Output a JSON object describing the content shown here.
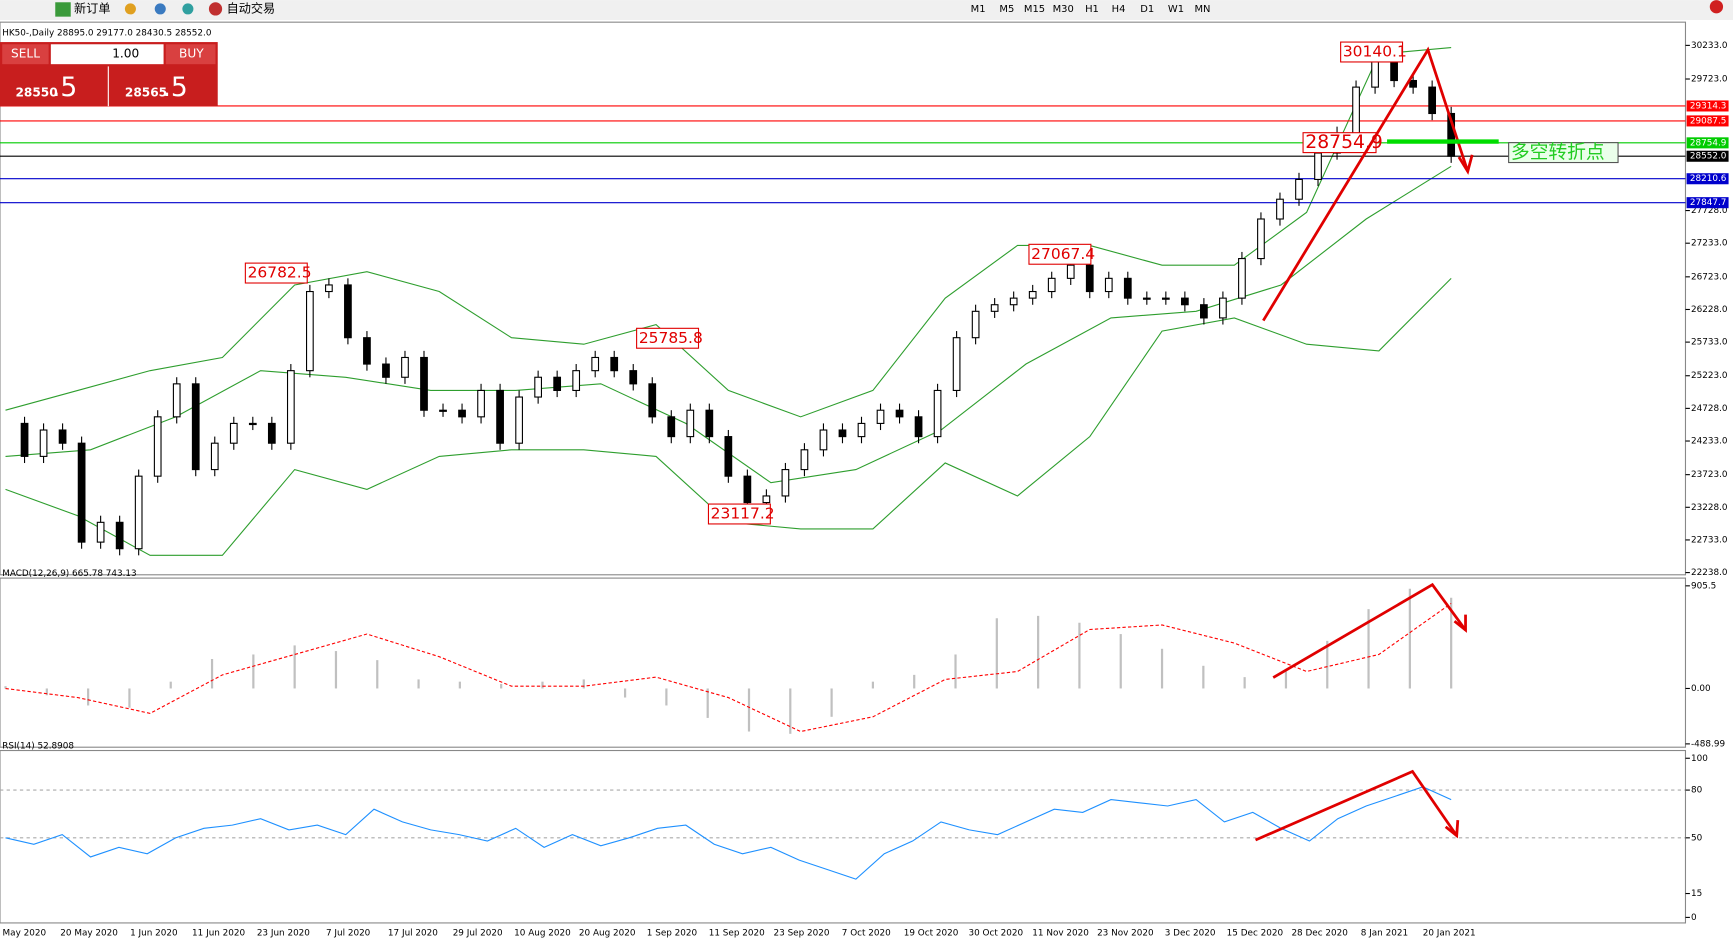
{
  "toolbar": {
    "new_order": "新订单",
    "auto_trading": "自动交易",
    "timeframes": [
      "M1",
      "M5",
      "M15",
      "M30",
      "H1",
      "H4",
      "D1",
      "W1",
      "MN"
    ]
  },
  "trade_panel": {
    "sell": "SELL",
    "buy": "BUY",
    "lot": "1.00",
    "sell_price": "28550",
    "sell_pips": ".5",
    "buy_price": "28565",
    "buy_pips": ".5"
  },
  "chart_data": [
    {
      "type": "candlestick",
      "title": "HK50-,Daily  28895.0 29177.0 28430.5 28552.0",
      "ylim": [
        22238,
        30233
      ],
      "yticks": [
        {
          "value": 30233,
          "label": "30233.0"
        },
        {
          "value": 29723,
          "label": "29723.0"
        },
        {
          "value": 27728,
          "label": "27728.0"
        },
        {
          "value": 27233,
          "label": "27233.0"
        },
        {
          "value": 26723,
          "label": "26723.0"
        },
        {
          "value": 26228,
          "label": "26228.0"
        },
        {
          "value": 25733,
          "label": "25733.0"
        },
        {
          "value": 25223,
          "label": "25223.0"
        },
        {
          "value": 24728,
          "label": "24728.0"
        },
        {
          "value": 24233,
          "label": "24233.0"
        },
        {
          "value": 23723,
          "label": "23723.0"
        },
        {
          "value": 23228,
          "label": "23228.0"
        },
        {
          "value": 22733,
          "label": "22733.0"
        },
        {
          "value": 22238,
          "label": "22238.0"
        }
      ],
      "xlabels": [
        "May 2020",
        "20 May 2020",
        "1 Jun 2020",
        "11 Jun 2020",
        "23 Jun 2020",
        "7 Jul 2020",
        "17 Jul 2020",
        "29 Jul 2020",
        "10 Aug 2020",
        "20 Aug 2020",
        "1 Sep 2020",
        "11 Sep 2020",
        "23 Sep 2020",
        "7 Oct 2020",
        "19 Oct 2020",
        "30 Oct 2020",
        "11 Nov 2020",
        "23 Nov 2020",
        "3 Dec 2020",
        "15 Dec 2020",
        "28 Dec 2020",
        "8 Jan 2021",
        "20 Jan 2021"
      ],
      "values": [
        24500,
        24000,
        24400,
        24200,
        22700,
        23000,
        22600,
        23700,
        24600,
        25100,
        23800,
        24200,
        24500,
        24500,
        24200,
        25300,
        26500,
        26600,
        25800,
        25400,
        25200,
        25500,
        24700,
        24700,
        24600,
        25000,
        24200,
        24900,
        25200,
        25000,
        25300,
        25500,
        25300,
        25100,
        24600,
        24300,
        24700,
        24300,
        23700,
        23300,
        23400,
        23800,
        24100,
        24400,
        24300,
        24500,
        24700,
        24600,
        24300,
        25000,
        25800,
        26200,
        26300,
        26400,
        26500,
        26700,
        26900,
        26500,
        26700,
        26400,
        26400,
        26400,
        26300,
        26100,
        26400,
        27000,
        27600,
        27900,
        28200,
        28600,
        28900,
        29600,
        30000,
        29700,
        29600,
        29200,
        28552
      ],
      "bands": {
        "color": "#2e9e2e",
        "upper": [
          24700,
          25000,
          25300,
          25500,
          26600,
          26800,
          26500,
          25800,
          25700,
          26000,
          25000,
          24600,
          25000,
          26400,
          27200,
          27200,
          26900,
          26900,
          27700,
          30100,
          30200
        ],
        "middle": [
          24000,
          24100,
          24600,
          25300,
          25200,
          25000,
          25000,
          25100,
          24500,
          23600,
          23800,
          24400,
          25400,
          26100,
          26200,
          26600,
          27600,
          28400
        ],
        "lower": [
          23500,
          23100,
          22500,
          22500,
          23800,
          23500,
          24000,
          24100,
          24100,
          24000,
          23000,
          22900,
          22900,
          23900,
          23400,
          24300,
          25900,
          26100,
          25700,
          25600,
          26700
        ]
      },
      "price_lines": [
        {
          "price": 29314.3,
          "color": "#ff0000"
        },
        {
          "price": 29087.5,
          "color": "#ff0000"
        },
        {
          "price": 28754.9,
          "color": "#00cc00"
        },
        {
          "price": {
            "value": 28552,
            "label": "28552.0"
          },
          "color": "#000000"
        },
        {
          "price": 28210.6,
          "color": "#0000cc"
        },
        {
          "price": 27847.7,
          "color": "#0000cc"
        }
      ],
      "annotations": [
        "30140.1",
        "28754.9",
        "27067.4",
        "26782.5",
        "25785.8",
        "23117.2",
        "多空转折点"
      ]
    },
    {
      "type": "macd",
      "title": "MACD(12,26,9) 665.78 743.13",
      "ylim": [
        -488.99,
        905.5
      ],
      "yticks": [
        905.5,
        {
          "value": 0,
          "label": "0.00"
        },
        -488.99
      ],
      "values": [
        20,
        -60,
        -150,
        -170,
        60,
        260,
        300,
        380,
        330,
        250,
        80,
        60,
        40,
        60,
        80,
        -80,
        -150,
        -260,
        -380,
        -400,
        -250,
        60,
        120,
        300,
        620,
        640,
        580,
        480,
        350,
        200,
        100,
        150,
        420,
        700,
        880,
        800
      ],
      "signal": [
        0,
        -80,
        -220,
        120,
        300,
        480,
        280,
        20,
        20,
        100,
        -80,
        -380,
        -250,
        80,
        150,
        520,
        560,
        400,
        150,
        300,
        750
      ],
      "color": "#c0c0c0",
      "signal_color": "#ff0000"
    },
    {
      "type": "rsi",
      "title": "RSI(14) 52.8908",
      "ylim": [
        0,
        100
      ],
      "yticks": [
        100,
        80,
        50,
        15,
        0
      ],
      "levels": [
        80,
        50
      ],
      "values": [
        50,
        46,
        52,
        38,
        44,
        40,
        50,
        56,
        58,
        62,
        55,
        58,
        52,
        68,
        60,
        55,
        52,
        48,
        56,
        44,
        52,
        45,
        50,
        56,
        58,
        46,
        40,
        44,
        36,
        30,
        24,
        40,
        48,
        60,
        55,
        52,
        60,
        68,
        66,
        74,
        72,
        70,
        74,
        60,
        66,
        56,
        48,
        62,
        70,
        76,
        82,
        74
      ],
      "color": "#1e90ff"
    }
  ]
}
